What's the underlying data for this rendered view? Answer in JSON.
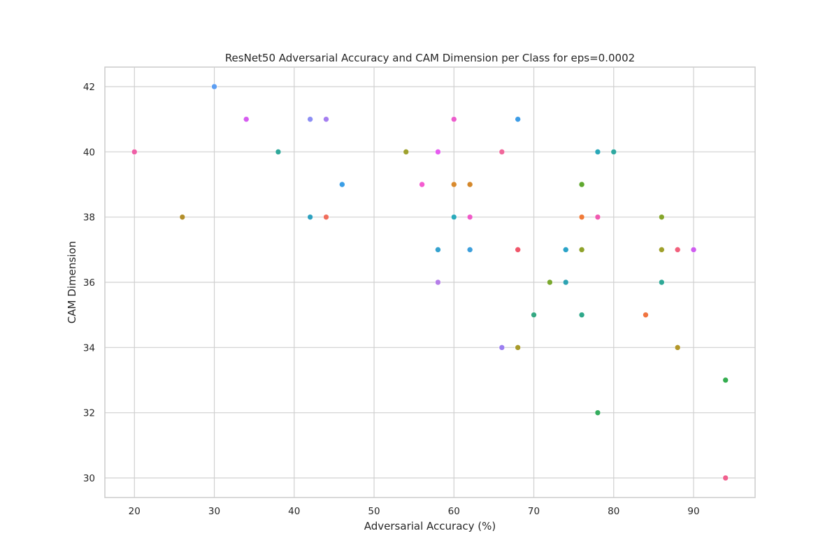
{
  "chart_data": {
    "type": "scatter",
    "title": "ResNet50 Adversarial Accuracy and CAM Dimension per Class for eps=0.0002",
    "xlabel": "Adversarial Accuracy (%)",
    "ylabel": "CAM Dimension",
    "xlim": [
      16.3,
      97.7
    ],
    "ylim": [
      29.4,
      42.6
    ],
    "xticks": [
      20,
      30,
      40,
      50,
      60,
      70,
      80,
      90
    ],
    "yticks": [
      30,
      32,
      34,
      36,
      38,
      40,
      42
    ],
    "grid": true,
    "legend": "none",
    "points": [
      {
        "x": 20,
        "y": 40,
        "color": "#ee5fa6"
      },
      {
        "x": 26,
        "y": 38,
        "color": "#b28e2a"
      },
      {
        "x": 30,
        "y": 42,
        "color": "#5d9ef2"
      },
      {
        "x": 34,
        "y": 41,
        "color": "#d65cf0"
      },
      {
        "x": 38,
        "y": 40,
        "color": "#2fa89a"
      },
      {
        "x": 42,
        "y": 41,
        "color": "#8c8ef4"
      },
      {
        "x": 42,
        "y": 38,
        "color": "#2da1c0"
      },
      {
        "x": 44,
        "y": 41,
        "color": "#a57ef0"
      },
      {
        "x": 44,
        "y": 38,
        "color": "#f06e5c"
      },
      {
        "x": 46,
        "y": 39,
        "color": "#3a9ee6"
      },
      {
        "x": 54,
        "y": 40,
        "color": "#9ea12e"
      },
      {
        "x": 56,
        "y": 39,
        "color": "#f45cd0"
      },
      {
        "x": 58,
        "y": 40,
        "color": "#e65cf0"
      },
      {
        "x": 58,
        "y": 37,
        "color": "#35a2cf"
      },
      {
        "x": 58,
        "y": 36,
        "color": "#b57ee8"
      },
      {
        "x": 60,
        "y": 41,
        "color": "#ec5ccc"
      },
      {
        "x": 60,
        "y": 39,
        "color": "#d98a2e"
      },
      {
        "x": 60,
        "y": 38,
        "color": "#2aaabb"
      },
      {
        "x": 62,
        "y": 39,
        "color": "#d4872a"
      },
      {
        "x": 62,
        "y": 38,
        "color": "#f05ac8"
      },
      {
        "x": 62,
        "y": 37,
        "color": "#3d9fdc"
      },
      {
        "x": 66,
        "y": 40,
        "color": "#f0679a"
      },
      {
        "x": 66,
        "y": 34,
        "color": "#9b7ef0"
      },
      {
        "x": 68,
        "y": 41,
        "color": "#3d9ce6"
      },
      {
        "x": 68,
        "y": 37,
        "color": "#f0566a"
      },
      {
        "x": 68,
        "y": 34,
        "color": "#a89a2a"
      },
      {
        "x": 70,
        "y": 35,
        "color": "#34a882"
      },
      {
        "x": 72,
        "y": 36,
        "color": "#7aa82e"
      },
      {
        "x": 74,
        "y": 37,
        "color": "#2aa3c8"
      },
      {
        "x": 74,
        "y": 36,
        "color": "#2ea3b2"
      },
      {
        "x": 76,
        "y": 39,
        "color": "#5fa82e"
      },
      {
        "x": 76,
        "y": 38,
        "color": "#f07a38"
      },
      {
        "x": 76,
        "y": 37,
        "color": "#8fa22a"
      },
      {
        "x": 76,
        "y": 35,
        "color": "#2ea88a"
      },
      {
        "x": 78,
        "y": 40,
        "color": "#2aa8b8"
      },
      {
        "x": 78,
        "y": 38,
        "color": "#f05ab0"
      },
      {
        "x": 78,
        "y": 32,
        "color": "#35ad5e"
      },
      {
        "x": 80,
        "y": 40,
        "color": "#2fa8a0"
      },
      {
        "x": 84,
        "y": 35,
        "color": "#f07440"
      },
      {
        "x": 86,
        "y": 38,
        "color": "#85a52a"
      },
      {
        "x": 86,
        "y": 37,
        "color": "#9fa02a"
      },
      {
        "x": 86,
        "y": 36,
        "color": "#2ea896"
      },
      {
        "x": 88,
        "y": 37,
        "color": "#f2607c"
      },
      {
        "x": 88,
        "y": 34,
        "color": "#b3972a"
      },
      {
        "x": 90,
        "y": 37,
        "color": "#cf5cf0"
      },
      {
        "x": 94,
        "y": 33,
        "color": "#34ad4f"
      },
      {
        "x": 94,
        "y": 30,
        "color": "#f0608e"
      }
    ]
  }
}
